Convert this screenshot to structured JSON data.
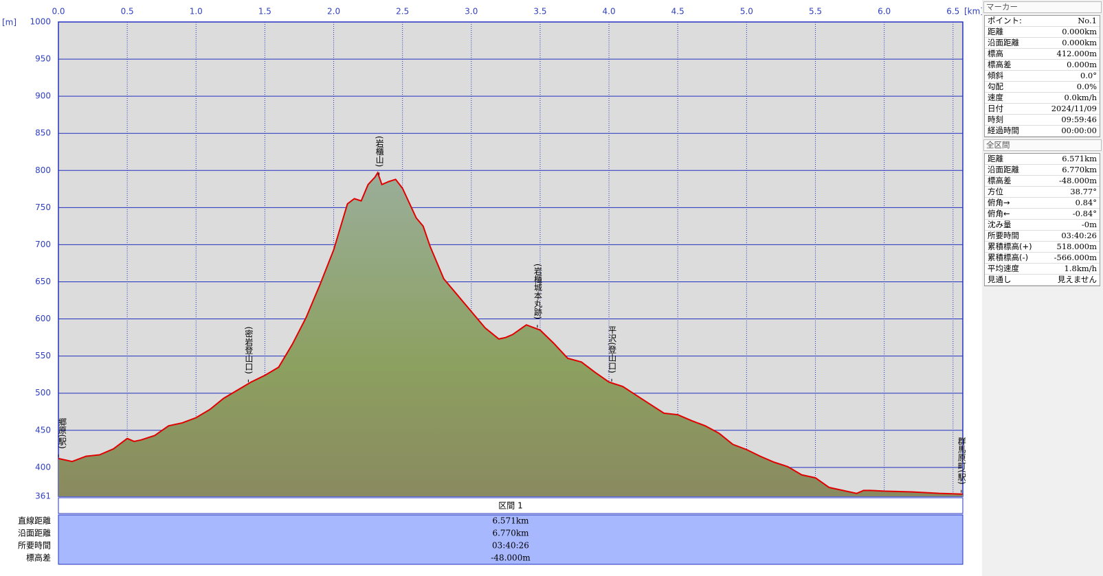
{
  "chart_data": {
    "type": "area",
    "x_label": "[km]",
    "y_label": "[m]",
    "xlim": [
      0,
      6.571
    ],
    "ylim": [
      361,
      1000
    ],
    "xticks": [
      {
        "value": 0,
        "label": "0.0"
      },
      0.5,
      {
        "value": 1,
        "label": "1.0"
      },
      1.5,
      {
        "value": 2,
        "label": "2.0"
      },
      2.5,
      {
        "value": 3,
        "label": "3.0"
      },
      3.5,
      {
        "value": 4,
        "label": "4.0"
      },
      4.5,
      {
        "value": 5,
        "label": "5.0"
      },
      5.5,
      {
        "value": 6,
        "label": "6.0"
      },
      6.5
    ],
    "yticks": [
      361,
      400,
      450,
      500,
      550,
      600,
      650,
      700,
      750,
      800,
      850,
      900,
      950,
      1000
    ],
    "grid": true,
    "x": [
      0,
      0.1,
      0.2,
      0.3,
      0.4,
      0.5,
      0.55,
      0.6,
      0.7,
      0.8,
      0.9,
      1.0,
      1.1,
      1.2,
      1.3,
      1.4,
      1.5,
      1.6,
      1.7,
      1.8,
      1.9,
      2.0,
      2.1,
      2.15,
      2.2,
      2.25,
      2.3,
      2.32,
      2.35,
      2.4,
      2.45,
      2.5,
      2.6,
      2.65,
      2.7,
      2.8,
      2.9,
      3.0,
      3.1,
      3.2,
      3.25,
      3.3,
      3.4,
      3.5,
      3.6,
      3.7,
      3.8,
      3.9,
      4.0,
      4.1,
      4.2,
      4.3,
      4.4,
      4.5,
      4.6,
      4.7,
      4.8,
      4.9,
      5.0,
      5.1,
      5.2,
      5.3,
      5.4,
      5.5,
      5.6,
      5.7,
      5.8,
      5.85,
      5.9,
      6.0,
      6.2,
      6.4,
      6.571
    ],
    "series": [
      {
        "color": "#e00000",
        "values": [
          412,
          408,
          415,
          417,
          425,
          439,
          435,
          437,
          443,
          456,
          460,
          467,
          478,
          493,
          504,
          515,
          524,
          535,
          566,
          602,
          646,
          693,
          755,
          762,
          759,
          781,
          791,
          797,
          781,
          785,
          788,
          776,
          736,
          725,
          698,
          654,
          632,
          610,
          588,
          573,
          575,
          579,
          592,
          585,
          567,
          547,
          542,
          528,
          515,
          509,
          497,
          485,
          473,
          471,
          463,
          456,
          446,
          431,
          424,
          415,
          407,
          401,
          390,
          386,
          373,
          369,
          365,
          369,
          369,
          368,
          367,
          365,
          364
        ]
      }
    ],
    "annotations": [
      {
        "x": 0,
        "text": "郷原(駅)"
      },
      {
        "x": 1.38,
        "text": "(密岩登山口)"
      },
      {
        "x": 2.33,
        "text": "(岩櫃山)"
      },
      {
        "x": 3.48,
        "text": "(岩櫃城本丸跡)"
      },
      {
        "x": 4.02,
        "text": "平沢(登山口)"
      },
      {
        "x": 6.56,
        "text": "群馬原町(駅)"
      }
    ]
  },
  "segment_table": {
    "header": "区間 1",
    "rows": [
      [
        "直線距離",
        "6.571km"
      ],
      [
        "沿面距離",
        "6.770km"
      ],
      [
        "所要時間",
        "03:40:26"
      ],
      [
        "標高差",
        "-48.000m"
      ]
    ]
  },
  "panel": {
    "marker": {
      "title": "マーカー",
      "rows": [
        [
          "ポイント:",
          "No.1"
        ],
        [
          "距離",
          "0.000km"
        ],
        [
          "沿面距離",
          "0.000km"
        ],
        [
          "標高",
          "412.000m"
        ],
        [
          "標高差",
          "0.000m"
        ],
        [
          "傾斜",
          "0.0°"
        ],
        [
          "勾配",
          "0.0%"
        ],
        [
          "速度",
          "0.0km/h"
        ],
        [
          "日付",
          "2024/11/09"
        ],
        [
          "時刻",
          "09:59:46"
        ],
        [
          "経過時間",
          "00:00:00"
        ]
      ]
    },
    "total": {
      "title": "全区間",
      "rows": [
        [
          "距離",
          "6.571km"
        ],
        [
          "沿面距離",
          "6.770km"
        ],
        [
          "標高差",
          "-48.000m"
        ],
        [
          "方位",
          "38.77°"
        ],
        [
          "俯角→",
          "0.84°"
        ],
        [
          "俯角←",
          "-0.84°"
        ],
        [
          "沈み量",
          "-0m"
        ],
        [
          "所要時間",
          "03:40:26"
        ],
        [
          "累積標高(+)",
          "518.000m"
        ],
        [
          "累積標高(-)",
          "-566.000m"
        ],
        [
          "平均速度",
          "1.8km/h"
        ],
        [
          "見通し",
          "見えません"
        ]
      ]
    }
  }
}
